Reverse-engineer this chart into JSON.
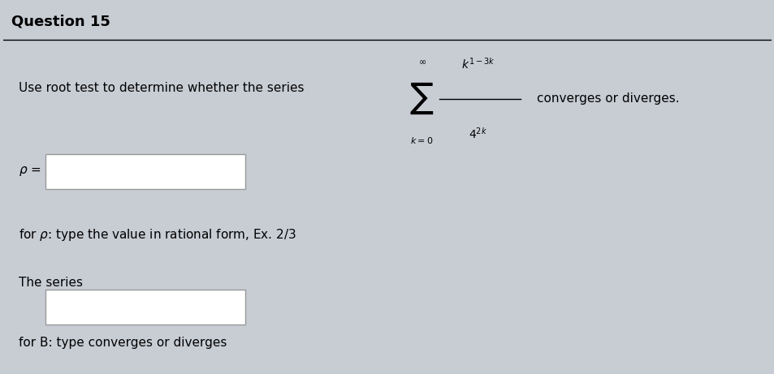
{
  "title": "Question 15",
  "bg_color": "#c8cdd4",
  "line1_plain": "Use root test to determine whether the series",
  "series_numerator": "k^{1-3k}",
  "series_denominator": "4^{2k}",
  "series_sum_from": "k=0",
  "series_sum_to": "\\infty",
  "line1_suffix": "converges or diverges.",
  "rho_label": "\\rho =",
  "for_rho_text": "for $\\rho$: type the value in rational form, Ex. 2/3",
  "the_series_text": "The series",
  "for_B_text": "for B: type converges or diverges",
  "title_fontsize": 13,
  "body_fontsize": 11,
  "math_fontsize": 11
}
